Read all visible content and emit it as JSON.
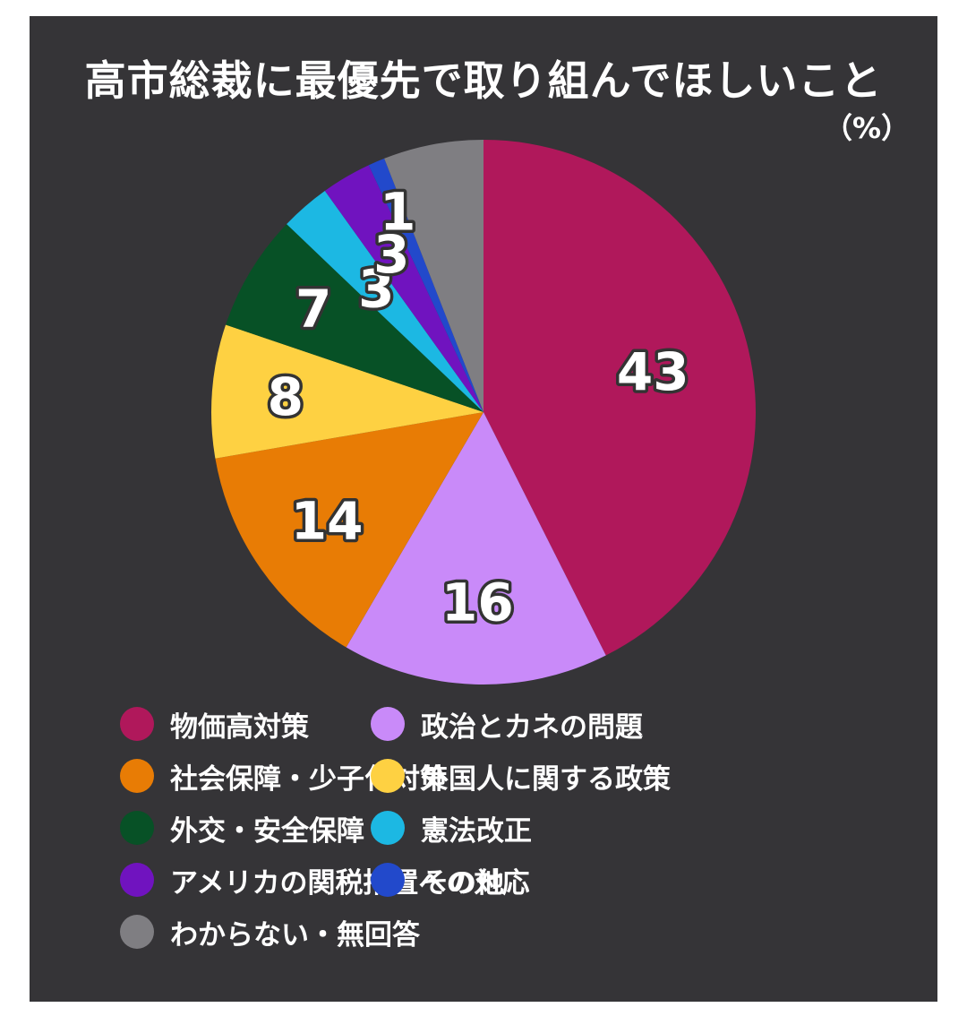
{
  "title": "高市総裁に最優先で取り組んでほしいこと",
  "unit": "（%）",
  "chart_data": {
    "type": "pie",
    "title": "高市総裁に最優先で取り組んでほしいこと",
    "unit": "（%）",
    "legend_position": "bottom",
    "slices": [
      {
        "name": "物価高対策",
        "value": 43,
        "label": "43",
        "color": "#B0185B"
      },
      {
        "name": "政治とカネの問題",
        "value": 16,
        "label": "16",
        "color": "#C98AF9"
      },
      {
        "name": "社会保障・少子化対策",
        "value": 14,
        "label": "14",
        "color": "#E87C05"
      },
      {
        "name": "外国人に関する政策",
        "value": 8,
        "label": "8",
        "color": "#FED142"
      },
      {
        "name": "外交・安全保障",
        "value": 7,
        "label": "7",
        "color": "#075126"
      },
      {
        "name": "憲法改正",
        "value": 3,
        "label": "3",
        "color": "#1CB8E3"
      },
      {
        "name": "アメリカの関税措置への対応",
        "value": 3,
        "label": "3",
        "color": "#7013BF"
      },
      {
        "name": "その他",
        "value": 1,
        "label": "1",
        "color": "#2249CB"
      },
      {
        "name": "わからない・無回答",
        "value": 6,
        "label": "",
        "color": "#7F7E82"
      }
    ]
  }
}
